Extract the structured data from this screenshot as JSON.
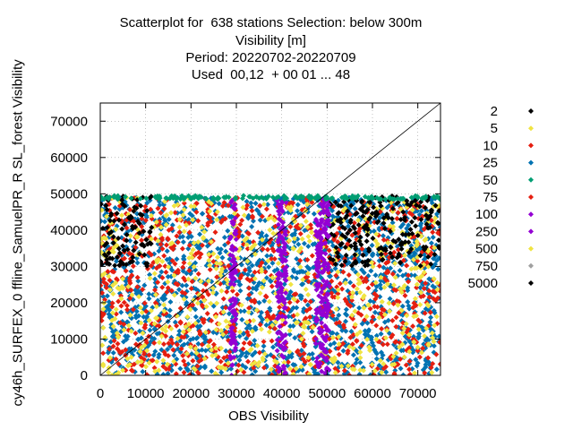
{
  "chart_data": {
    "type": "scatter",
    "title_lines": [
      "Scatterplot for  638 stations Selection: below 300m",
      "Visibility [m]",
      "Period: 20220702-20220709",
      "Used  00,12  + 00 01 ... 48"
    ],
    "xlabel": "OBS Visibility",
    "ylabel": "cy46h_SURFEX_0 ffline_SamuelPR_R SL_forest Visibility",
    "xlim": [
      0,
      75000
    ],
    "ylim": [
      0,
      75000
    ],
    "xticks": [
      "0",
      "10000",
      "20000",
      "30000",
      "40000",
      "50000",
      "60000",
      "70000"
    ],
    "yticks": [
      "0",
      "10000",
      "20000",
      "30000",
      "40000",
      "50000",
      "60000",
      "70000"
    ],
    "grid": true,
    "diagonal_line": true,
    "legend_position": "right",
    "series": [
      {
        "name": "2",
        "color": "#000000"
      },
      {
        "name": "5",
        "color": "#f0e442"
      },
      {
        "name": "10",
        "color": "#e51e10"
      },
      {
        "name": "25",
        "color": "#0072b2"
      },
      {
        "name": "50",
        "color": "#009e73"
      },
      {
        "name": "75",
        "color": "#e51e10"
      },
      {
        "name": "100",
        "color": "#9400d3"
      },
      {
        "name": "250",
        "color": "#9400d3"
      },
      {
        "name": "500",
        "color": "#f0e442"
      },
      {
        "name": "750",
        "color": "#a0a0a0"
      },
      {
        "name": "5000",
        "color": "#000000"
      }
    ],
    "density_regions": [
      {
        "series": "25",
        "x": [
          0,
          75000
        ],
        "y": [
          0,
          49000
        ],
        "description": "dense blue background fill"
      },
      {
        "series": "10",
        "x": [
          0,
          75000
        ],
        "y": [
          0,
          49000
        ],
        "description": "red scatter throughout"
      },
      {
        "series": "5",
        "x": [
          0,
          75000
        ],
        "y": [
          0,
          49000
        ],
        "description": "yellow scatter, denser at edges"
      },
      {
        "series": "2",
        "x": [
          0,
          12000
        ],
        "y": [
          30000,
          49500
        ],
        "description": "black cluster upper left"
      },
      {
        "series": "2",
        "x": [
          50000,
          75000
        ],
        "y": [
          30000,
          49500
        ],
        "description": "black cluster upper right"
      },
      {
        "series": "100",
        "x": [
          47500,
          50500
        ],
        "y": [
          0,
          49000
        ],
        "description": "purple vertical band"
      },
      {
        "series": "100",
        "x": [
          39000,
          41000
        ],
        "y": [
          0,
          49000
        ],
        "description": "purple vertical band"
      },
      {
        "series": "100",
        "x": [
          28500,
          30000
        ],
        "y": [
          0,
          49000
        ],
        "description": "purple vertical band"
      },
      {
        "series": "50",
        "x": [
          0,
          75000
        ],
        "y": [
          48500,
          49500
        ],
        "description": "green horizontal cap band"
      }
    ]
  }
}
